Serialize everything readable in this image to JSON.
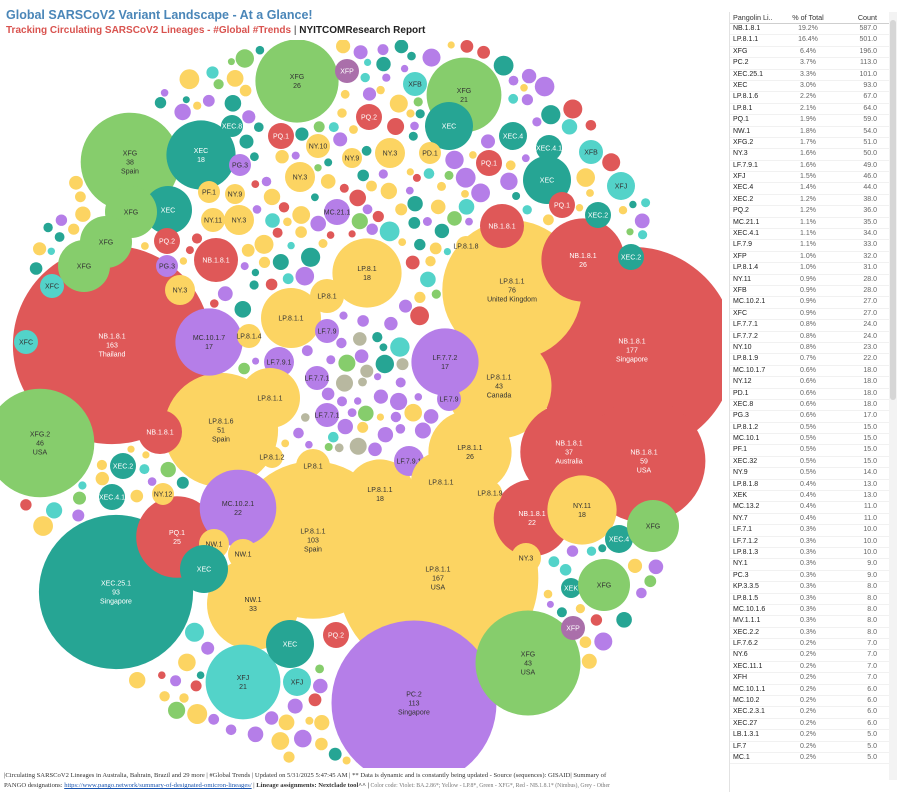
{
  "header": {
    "title": "Global SARSCoV2 Variant Landscape - At a Glance!",
    "subtitle_main": "Tracking Circulating SARSCoV2 Lineages - #Global #Trends",
    "subtitle_sep": "|",
    "subtitle_brand": "NYITCOMResearch Report"
  },
  "colors": {
    "violet": "#b57ee8",
    "yellow": "#fcd462",
    "green": "#86cd6c",
    "red": "#df5858",
    "teal": "#26a594",
    "turquoise": "#53d3c9",
    "purple": "#aa6faa",
    "grey": "#b8b8a0"
  },
  "chart_data": {
    "type": "bubble",
    "bubbles": [
      {
        "lineage": "NB.1.8.1",
        "count": 163,
        "country": "Thailand",
        "color": "red"
      },
      {
        "lineage": "NB.1.8.1",
        "count": 177,
        "country": "Singapore",
        "color": "red"
      },
      {
        "lineage": "LP.8.1.1",
        "count": 167,
        "country": "USA",
        "color": "yellow"
      },
      {
        "lineage": "PC.2",
        "count": 113,
        "country": "Singapore",
        "color": "violet"
      },
      {
        "lineage": "LP.8.1.1",
        "count": 103,
        "country": "Spain",
        "color": "yellow"
      },
      {
        "lineage": "XEC.25.1",
        "count": 93,
        "country": "Singapore",
        "color": "teal"
      },
      {
        "lineage": "LP.8.1.1",
        "count": 76,
        "country": "United Kingdom",
        "color": "yellow"
      },
      {
        "lineage": "NB.1.8.1",
        "count": 59,
        "country": "USA",
        "color": "red"
      },
      {
        "lineage": "LP.8.1.6",
        "count": 51,
        "country": "Spain",
        "color": "yellow"
      },
      {
        "lineage": "XFG.2",
        "count": 46,
        "country": "USA",
        "color": "green"
      },
      {
        "lineage": "LP.8.1.1",
        "count": 43,
        "country": "Canada",
        "color": "yellow"
      },
      {
        "lineage": "XFG",
        "count": 43,
        "country": "USA",
        "color": "green"
      },
      {
        "lineage": "XFG",
        "count": 38,
        "country": "Spain",
        "color": "green"
      },
      {
        "lineage": "NB.1.8.1",
        "count": 37,
        "country": "Australia",
        "color": "red"
      },
      {
        "lineage": "NW.1",
        "count": 33,
        "country": "",
        "color": "yellow"
      },
      {
        "lineage": "NB.1.8.1",
        "count": 26,
        "country": "",
        "color": "red"
      },
      {
        "lineage": "LP.8.1.1",
        "count": 26,
        "country": "",
        "color": "yellow"
      },
      {
        "lineage": "XFG",
        "count": 26,
        "country": "",
        "color": "green"
      },
      {
        "lineage": "PQ.1",
        "count": 25,
        "country": "",
        "color": "red"
      },
      {
        "lineage": "NB.1.8.1",
        "count": 22,
        "country": "",
        "color": "red"
      },
      {
        "lineage": "MC.10.2.1",
        "count": 22,
        "country": "",
        "color": "violet"
      },
      {
        "lineage": "XFG",
        "count": 21,
        "country": "",
        "color": "green"
      },
      {
        "lineage": "XFJ",
        "count": 21,
        "country": "",
        "color": "turquoise"
      },
      {
        "lineage": "LP.8.1",
        "count": 18,
        "country": "",
        "color": "yellow"
      },
      {
        "lineage": "LP.8.1.1",
        "count": 18,
        "country": "",
        "color": "yellow"
      },
      {
        "lineage": "NY.11",
        "count": 18,
        "country": "",
        "color": "yellow"
      },
      {
        "lineage": "XEC",
        "count": 18,
        "country": "",
        "color": "teal"
      },
      {
        "lineage": "MC.10.1.7",
        "count": 17,
        "country": "",
        "color": "violet"
      },
      {
        "lineage": "LF.7.7.2",
        "count": 17,
        "country": "",
        "color": "violet"
      }
    ],
    "table": {
      "columns": [
        "Pangolin Li..",
        "% of Total",
        "Count"
      ],
      "rows": [
        [
          "NB.1.8.1",
          "19.2%",
          "587.0"
        ],
        [
          "LP.8.1.1",
          "16.4%",
          "501.0"
        ],
        [
          "XFG",
          "6.4%",
          "196.0"
        ],
        [
          "PC.2",
          "3.7%",
          "113.0"
        ],
        [
          "XEC.25.1",
          "3.3%",
          "101.0"
        ],
        [
          "XEC",
          "3.0%",
          "93.0"
        ],
        [
          "LP.8.1.6",
          "2.2%",
          "67.0"
        ],
        [
          "LP.8.1",
          "2.1%",
          "64.0"
        ],
        [
          "PQ.1",
          "1.9%",
          "59.0"
        ],
        [
          "NW.1",
          "1.8%",
          "54.0"
        ],
        [
          "XFG.2",
          "1.7%",
          "51.0"
        ],
        [
          "NY.3",
          "1.6%",
          "50.0"
        ],
        [
          "LF.7.9.1",
          "1.6%",
          "49.0"
        ],
        [
          "XFJ",
          "1.5%",
          "46.0"
        ],
        [
          "XEC.4",
          "1.4%",
          "44.0"
        ],
        [
          "XEC.2",
          "1.2%",
          "38.0"
        ],
        [
          "PQ.2",
          "1.2%",
          "36.0"
        ],
        [
          "MC.21.1",
          "1.1%",
          "35.0"
        ],
        [
          "XEC.4.1",
          "1.1%",
          "34.0"
        ],
        [
          "LF.7.9",
          "1.1%",
          "33.0"
        ],
        [
          "XFP",
          "1.0%",
          "32.0"
        ],
        [
          "LP.8.1.4",
          "1.0%",
          "31.0"
        ],
        [
          "NY.11",
          "0.9%",
          "28.0"
        ],
        [
          "XFB",
          "0.9%",
          "28.0"
        ],
        [
          "MC.10.2.1",
          "0.9%",
          "27.0"
        ],
        [
          "XFC",
          "0.9%",
          "27.0"
        ],
        [
          "LF.7.7.1",
          "0.8%",
          "24.0"
        ],
        [
          "LF.7.7.2",
          "0.8%",
          "24.0"
        ],
        [
          "NY.10",
          "0.8%",
          "23.0"
        ],
        [
          "LP.8.1.9",
          "0.7%",
          "22.0"
        ],
        [
          "MC.10.1.7",
          "0.6%",
          "18.0"
        ],
        [
          "NY.12",
          "0.6%",
          "18.0"
        ],
        [
          "PD.1",
          "0.6%",
          "18.0"
        ],
        [
          "XEC.8",
          "0.6%",
          "18.0"
        ],
        [
          "PG.3",
          "0.6%",
          "17.0"
        ],
        [
          "LP.8.1.2",
          "0.5%",
          "15.0"
        ],
        [
          "MC.10.1",
          "0.5%",
          "15.0"
        ],
        [
          "PF.1",
          "0.5%",
          "15.0"
        ],
        [
          "XEC.32",
          "0.5%",
          "15.0"
        ],
        [
          "NY.9",
          "0.5%",
          "14.0"
        ],
        [
          "LP.8.1.8",
          "0.4%",
          "13.0"
        ],
        [
          "XEK",
          "0.4%",
          "13.0"
        ],
        [
          "MC.13.2",
          "0.4%",
          "11.0"
        ],
        [
          "NY.7",
          "0.4%",
          "11.0"
        ],
        [
          "LF.7.1",
          "0.3%",
          "10.0"
        ],
        [
          "LF.7.1.2",
          "0.3%",
          "10.0"
        ],
        [
          "LP.8.1.3",
          "0.3%",
          "10.0"
        ],
        [
          "NY.1",
          "0.3%",
          "9.0"
        ],
        [
          "PC.3",
          "0.3%",
          "9.0"
        ],
        [
          "KP.3.3.5",
          "0.3%",
          "8.0"
        ],
        [
          "LP.8.1.5",
          "0.3%",
          "8.0"
        ],
        [
          "MC.10.1.6",
          "0.3%",
          "8.0"
        ],
        [
          "MV.1.1.1",
          "0.3%",
          "8.0"
        ],
        [
          "XEC.2.2",
          "0.3%",
          "8.0"
        ],
        [
          "LF.7.6.2",
          "0.2%",
          "7.0"
        ],
        [
          "NY.6",
          "0.2%",
          "7.0"
        ],
        [
          "XEC.11.1",
          "0.2%",
          "7.0"
        ],
        [
          "XFH",
          "0.2%",
          "7.0"
        ],
        [
          "MC.10.1.1",
          "0.2%",
          "6.0"
        ],
        [
          "MC.10.2",
          "0.2%",
          "6.0"
        ],
        [
          "XEC.2.3.1",
          "0.2%",
          "6.0"
        ],
        [
          "XEC.27",
          "0.2%",
          "6.0"
        ],
        [
          "LB.1.3.1",
          "0.2%",
          "5.0"
        ],
        [
          "LF.7",
          "0.2%",
          "5.0"
        ],
        [
          "MC.1",
          "0.2%",
          "5.0"
        ]
      ]
    }
  },
  "footer": {
    "line1": "|Circulating SARSCoV2 Lineages in Australia, Bahrain, Brazil and 29 more | #Global Trends | Updated on 5/31/2025 5:47:45 AM | ** Data is dynamic and is constantly being updated - Source (sequences): GISAID| Summary of",
    "line2_prefix": "PANGO designations: ",
    "link": "https://www.pango.network/summary-of-designated-omicron-lineages/",
    "line2_mid": " | ",
    "bold": "Lineage assignments: Nextclade tool^^ |",
    "note": " Color code: Violet: BA.2.86*; Yellow - LP.8*, Green - XFG*, Red - NB.1.8.1* (Nimbus), Grey - Other"
  }
}
